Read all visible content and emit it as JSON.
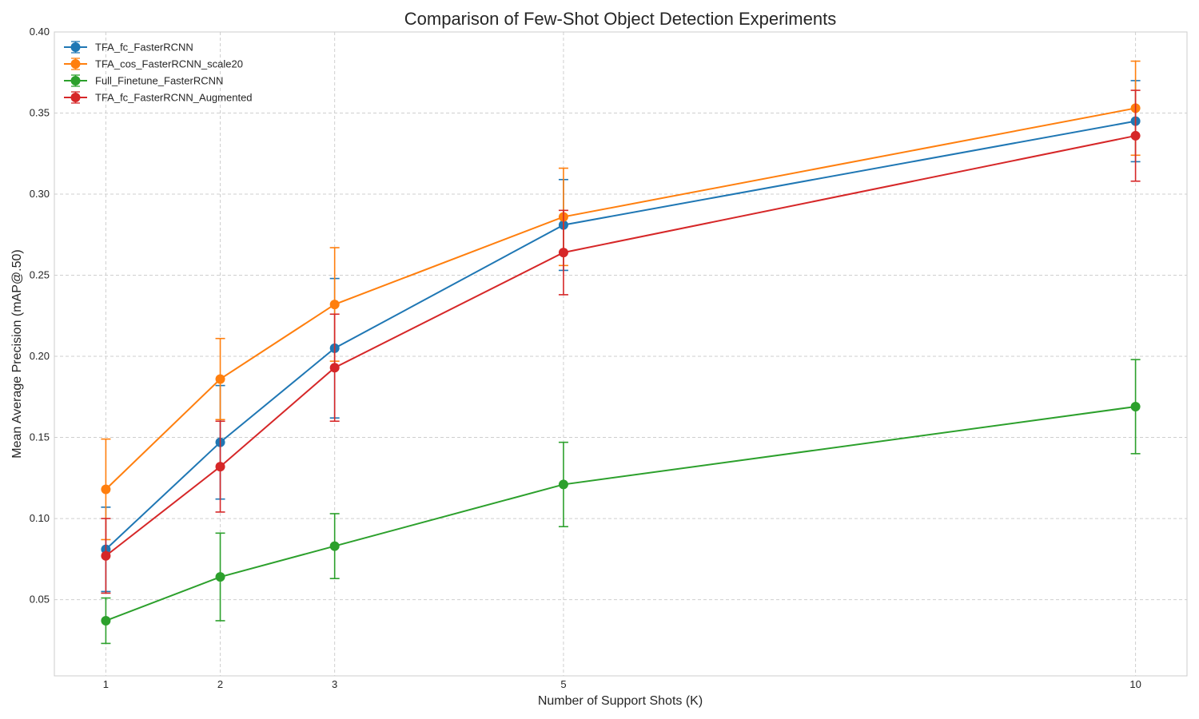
{
  "chart_data": {
    "type": "line",
    "title": "Comparison of Few-Shot Object Detection Experiments",
    "xlabel": "Number of Support Shots (K)",
    "ylabel": "Mean Average Precision (mAP@.50)",
    "x": [
      1,
      2,
      3,
      5,
      10
    ],
    "x_tick_labels": [
      "1",
      "2",
      "3",
      "5",
      "10"
    ],
    "xlim": [
      0.55,
      10.45
    ],
    "ylim": [
      0.003,
      0.4
    ],
    "y_ticks": [
      0.05,
      0.1,
      0.15,
      0.2,
      0.25,
      0.3,
      0.35,
      0.4
    ],
    "y_tick_labels": [
      "0.05",
      "0.10",
      "0.15",
      "0.20",
      "0.25",
      "0.30",
      "0.35",
      "0.40"
    ],
    "grid": true,
    "legend_position": "top-left",
    "error_bars": true,
    "series": [
      {
        "name": "TFA_fc_FasterRCNN",
        "color": "#1f77b4",
        "values": [
          0.081,
          0.147,
          0.205,
          0.281,
          0.345
        ],
        "errors": [
          0.026,
          0.035,
          0.043,
          0.028,
          0.025
        ]
      },
      {
        "name": "TFA_cos_FasterRCNN_scale20",
        "color": "#ff7f0e",
        "values": [
          0.118,
          0.186,
          0.232,
          0.286,
          0.353
        ],
        "errors": [
          0.031,
          0.025,
          0.035,
          0.03,
          0.029
        ]
      },
      {
        "name": "Full_Finetune_FasterRCNN",
        "color": "#2ca02c",
        "values": [
          0.037,
          0.064,
          0.083,
          0.121,
          0.169
        ],
        "errors": [
          0.014,
          0.027,
          0.02,
          0.026,
          0.029
        ]
      },
      {
        "name": "TFA_fc_FasterRCNN_Augmented",
        "color": "#d62728",
        "values": [
          0.077,
          0.132,
          0.193,
          0.264,
          0.336
        ],
        "errors": [
          0.023,
          0.028,
          0.033,
          0.026,
          0.028
        ]
      }
    ]
  }
}
